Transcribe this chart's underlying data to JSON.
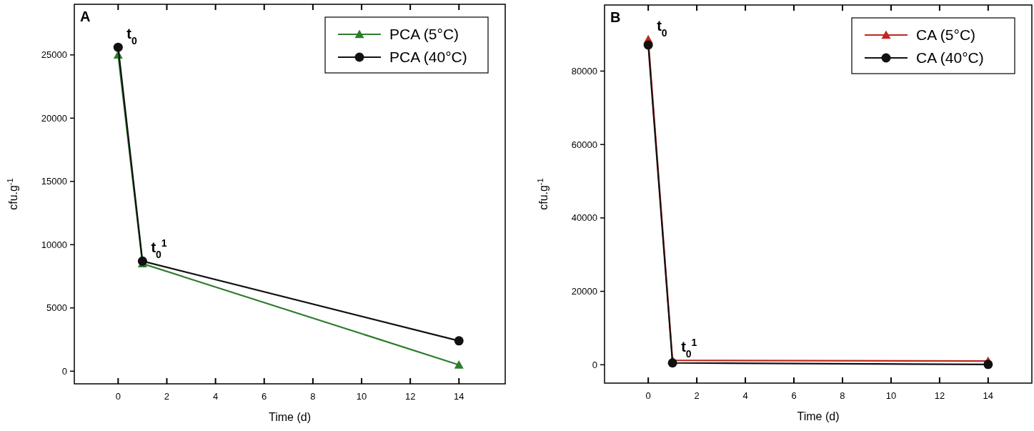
{
  "chart_data": [
    {
      "type": "line",
      "title": "A",
      "xlabel": "Time (d)",
      "ylabel": "cfu.g$^{-1}$",
      "x": [
        0,
        1,
        14
      ],
      "xlim": [
        -1.8,
        15.9
      ],
      "ylim": [
        -1000,
        29000
      ],
      "xticks": [
        0,
        2,
        4,
        6,
        8,
        10,
        12,
        14
      ],
      "yticks": [
        0,
        5000,
        10000,
        15000,
        20000,
        25000
      ],
      "legend": "top right",
      "grid": false,
      "series": [
        {
          "name": "PCA (5°C)",
          "color": "#2e7d2e",
          "marker": "triangle",
          "values": [
            25000,
            8500,
            500
          ]
        },
        {
          "name": "PCA (40°C)",
          "color": "#111111",
          "marker": "circle",
          "values": [
            25600,
            8700,
            2400
          ]
        }
      ],
      "annotations": [
        "t$_{0}$",
        "t$_{0}$$^{1}$"
      ]
    },
    {
      "type": "line",
      "title": "B",
      "xlabel": "Time (d)",
      "ylabel": "cfu.g$^{-1}$",
      "x": [
        0,
        1,
        14
      ],
      "xlim": [
        -1.8,
        15.8
      ],
      "ylim": [
        -5000,
        98000
      ],
      "xticks": [
        0,
        2,
        4,
        6,
        8,
        10,
        12,
        14
      ],
      "yticks": [
        0,
        20000,
        40000,
        60000,
        80000
      ],
      "legend": "top right",
      "grid": false,
      "series": [
        {
          "name": "CA (5°C)",
          "color": "#c0281e",
          "marker": "triangle",
          "values": [
            88600,
            1200,
            1000
          ]
        },
        {
          "name": "CA (40°C)",
          "color": "#111111",
          "marker": "circle",
          "values": [
            87100,
            500,
            100
          ]
        }
      ],
      "annotations": [
        "t$_{0}$",
        "t$_{0}$$^{1}$"
      ]
    }
  ]
}
